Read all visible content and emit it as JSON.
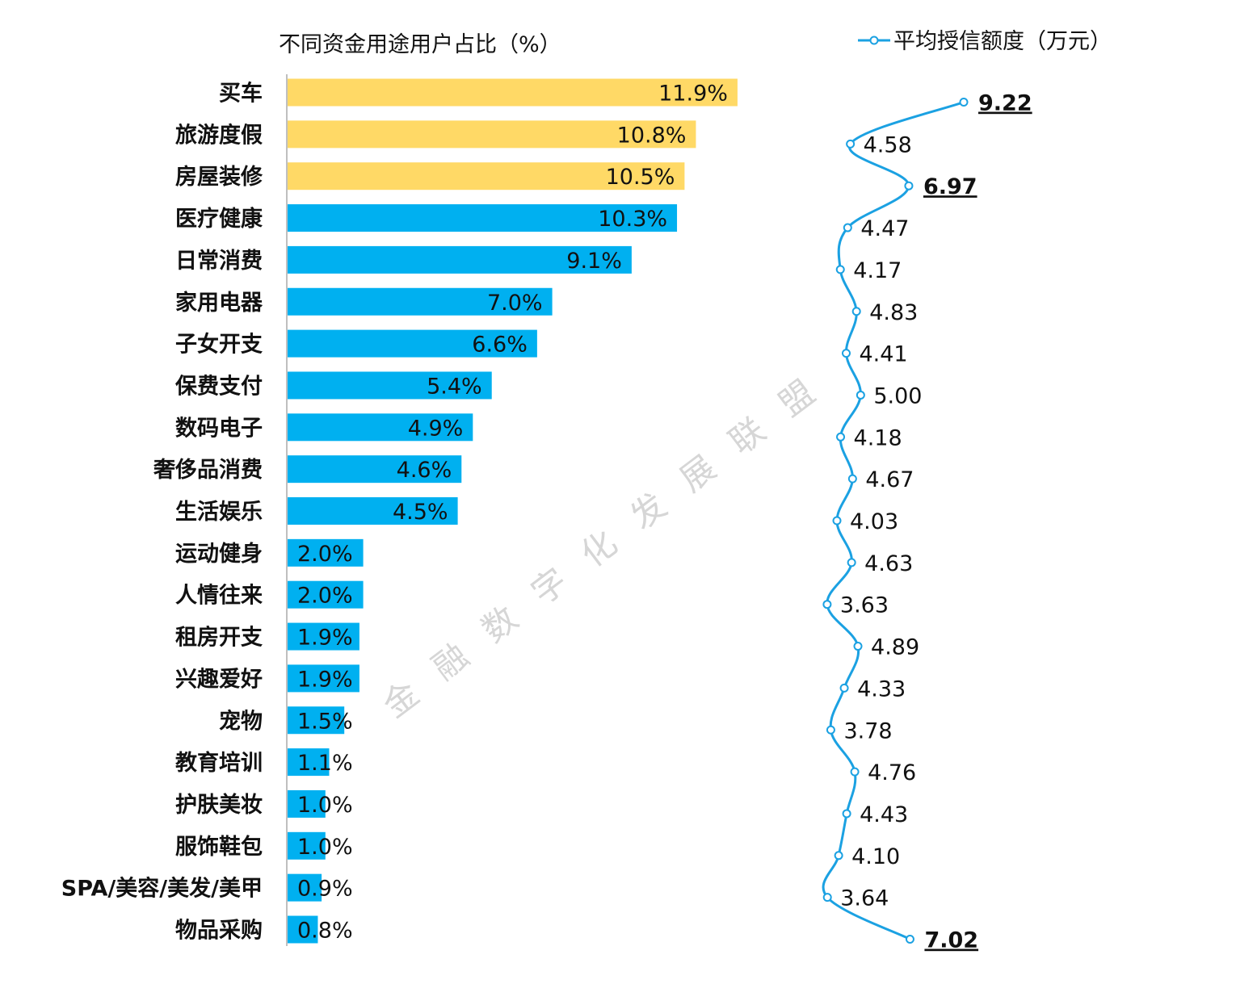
{
  "bar_title": "不同资金用途用户占比（%）",
  "legend_label": "平均授信额度（万元）",
  "watermark": "金 融 数 字 化 发 展 联 盟",
  "colors": {
    "bar_highlight": "#FFD966",
    "bar_default": "#00B0F0",
    "line": "#1BA1E2",
    "axis": "#BFBFBF"
  },
  "chart_data": [
    {
      "type": "bar",
      "orientation": "horizontal",
      "title": "不同资金用途用户占比（%）",
      "categories": [
        "买车",
        "旅游度假",
        "房屋装修",
        "医疗健康",
        "日常消费",
        "家用电器",
        "子女开支",
        "保费支付",
        "数码电子",
        "奢侈品消费",
        "生活娱乐",
        "运动健身",
        "人情往来",
        "租房开支",
        "兴趣爱好",
        "宠物",
        "教育培训",
        "护肤美妆",
        "服饰鞋包",
        "SPA/美容/美发/美甲",
        "物品采购"
      ],
      "values": [
        11.9,
        10.8,
        10.5,
        10.3,
        9.1,
        7.0,
        6.6,
        5.4,
        4.9,
        4.6,
        4.5,
        2.0,
        2.0,
        1.9,
        1.9,
        1.5,
        1.1,
        1.0,
        1.0,
        0.9,
        0.8
      ],
      "value_labels": [
        "11.9%",
        "10.8%",
        "10.5%",
        "10.3%",
        "9.1%",
        "7.0%",
        "6.6%",
        "5.4%",
        "4.9%",
        "4.6%",
        "4.5%",
        "2.0%",
        "2.0%",
        "1.9%",
        "1.9%",
        "1.5%",
        "1.1%",
        "1.0%",
        "1.0%",
        "0.9%",
        "0.8%"
      ],
      "highlighted": [
        true,
        true,
        true,
        false,
        false,
        false,
        false,
        false,
        false,
        false,
        false,
        false,
        false,
        false,
        false,
        false,
        false,
        false,
        false,
        false,
        false
      ],
      "xlim": [
        0,
        12
      ]
    },
    {
      "type": "line",
      "orientation": "vertical",
      "series": [
        {
          "name": "平均授信额度（万元）",
          "values": [
            9.22,
            4.58,
            6.97,
            4.47,
            4.17,
            4.83,
            4.41,
            5.0,
            4.18,
            4.67,
            4.03,
            4.63,
            3.63,
            4.89,
            4.33,
            3.78,
            4.76,
            4.43,
            4.1,
            3.64,
            7.02
          ],
          "value_labels": [
            "9.22",
            "4.58",
            "6.97",
            "4.47",
            "4.17",
            "4.83",
            "4.41",
            "5.00",
            "4.18",
            "4.67",
            "4.03",
            "4.63",
            "3.63",
            "4.89",
            "4.33",
            "3.78",
            "4.76",
            "4.43",
            "4.10",
            "3.64",
            "7.02"
          ],
          "emphasized": [
            true,
            false,
            true,
            false,
            false,
            false,
            false,
            false,
            false,
            false,
            false,
            false,
            false,
            false,
            false,
            false,
            false,
            false,
            false,
            false,
            true
          ]
        }
      ],
      "legend_position": "top-right",
      "smooth": true
    }
  ]
}
